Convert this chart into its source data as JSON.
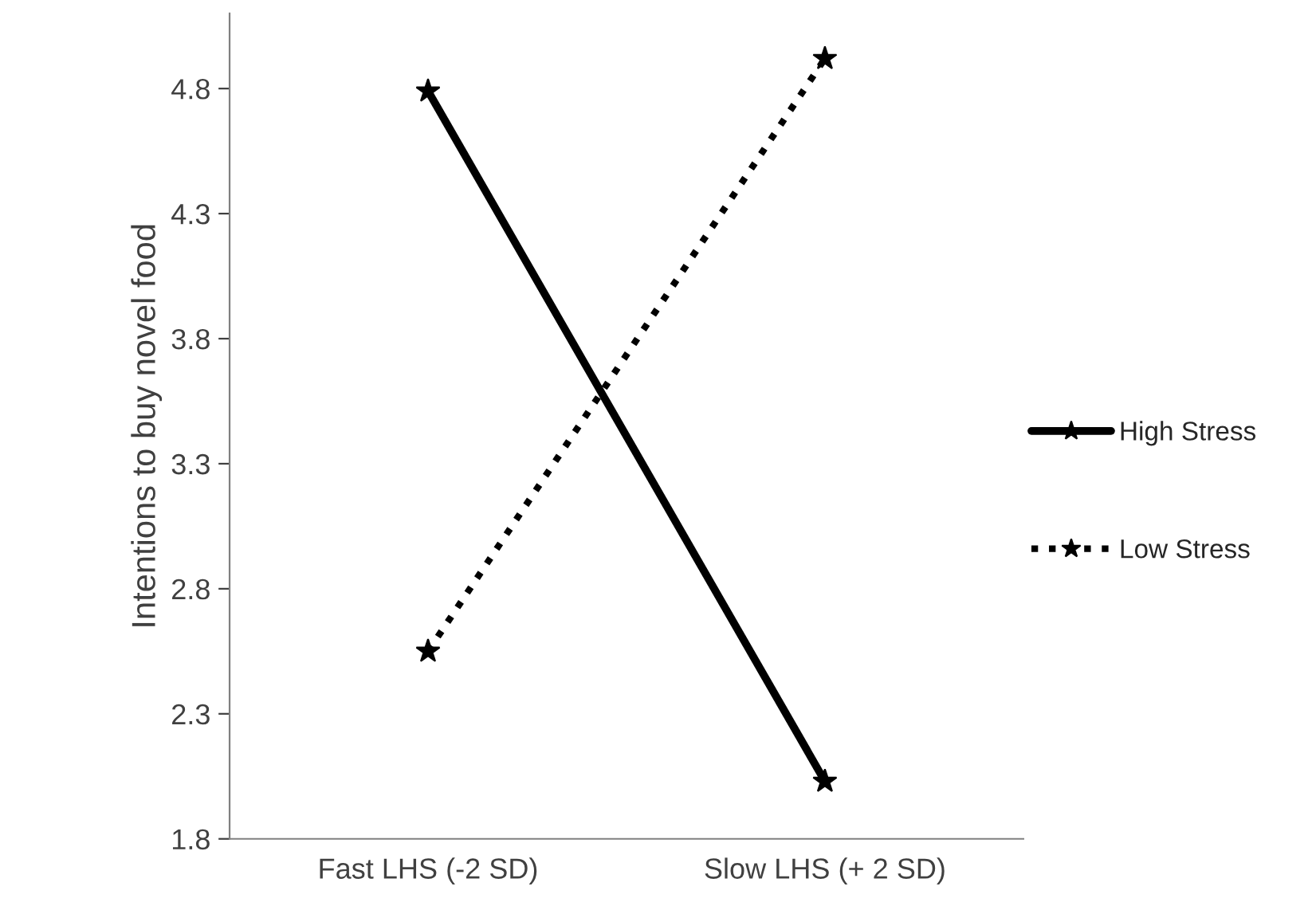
{
  "chart_data": {
    "type": "line",
    "ylabel": "Intentions to buy novel food",
    "categories": [
      "Fast LHS (-2 SD)",
      "Slow LHS (+ 2 SD)"
    ],
    "series": [
      {
        "name": "High Stress",
        "color": "#000000",
        "values": [
          4.79,
          2.03
        ],
        "line_style": "solid",
        "marker": "star"
      },
      {
        "name": "Low Stress",
        "color": "#000000",
        "values": [
          2.55,
          4.92
        ],
        "line_style": "dotted",
        "marker": "star"
      }
    ],
    "ylim": [
      1.8,
      5.1
    ],
    "yticks": [
      {
        "value": 1.8,
        "label": "1.8"
      },
      {
        "value": 2.3,
        "label": "2.3"
      },
      {
        "value": 2.8,
        "label": "2.8"
      },
      {
        "value": 3.3,
        "label": "3.3"
      },
      {
        "value": 3.8,
        "label": "3.8"
      },
      {
        "value": 4.3,
        "label": "4.3"
      },
      {
        "value": 4.8,
        "label": "4.8"
      }
    ],
    "grid": false,
    "legend": "right"
  }
}
